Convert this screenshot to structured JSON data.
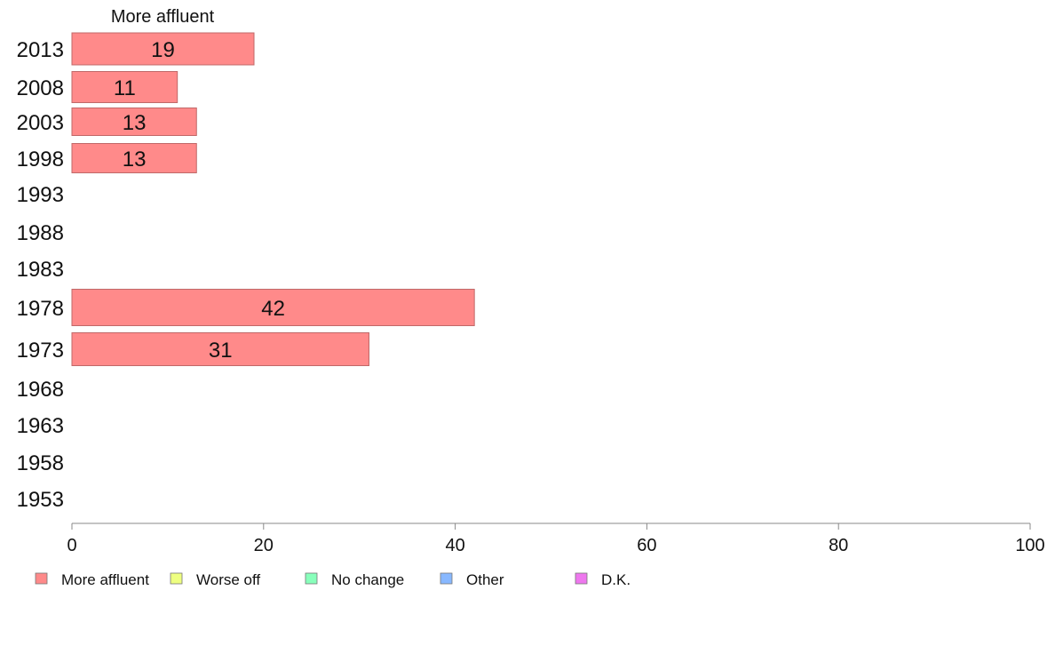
{
  "chart_data": {
    "type": "bar",
    "orientation": "horizontal",
    "series_header": "More affluent",
    "categories": [
      "2013",
      "2008",
      "2003",
      "1998",
      "1993",
      "1988",
      "1983",
      "1978",
      "1973",
      "1968",
      "1963",
      "1958",
      "1953"
    ],
    "series": [
      {
        "name": "More affluent",
        "color": "#ff8a8a",
        "values": [
          19,
          11,
          13,
          13,
          null,
          null,
          null,
          42,
          31,
          null,
          null,
          null,
          null
        ]
      },
      {
        "name": "Worse off",
        "color": "#eeff80",
        "values": [
          null,
          null,
          null,
          null,
          null,
          null,
          null,
          null,
          null,
          null,
          null,
          null,
          null
        ]
      },
      {
        "name": "No change",
        "color": "#88ffbb",
        "values": [
          null,
          null,
          null,
          null,
          null,
          null,
          null,
          null,
          null,
          null,
          null,
          null,
          null
        ]
      },
      {
        "name": "Other",
        "color": "#88b8ff",
        "values": [
          null,
          null,
          null,
          null,
          null,
          null,
          null,
          null,
          null,
          null,
          null,
          null,
          null
        ]
      },
      {
        "name": "D.K.",
        "color": "#ee77ee",
        "values": [
          null,
          null,
          null,
          null,
          null,
          null,
          null,
          null,
          null,
          null,
          null,
          null,
          null
        ]
      }
    ],
    "xlim": [
      0,
      100
    ],
    "xticks": [
      "0",
      "20",
      "40",
      "60",
      "80",
      "100"
    ],
    "grid": false,
    "legend_position": "bottom-left"
  }
}
